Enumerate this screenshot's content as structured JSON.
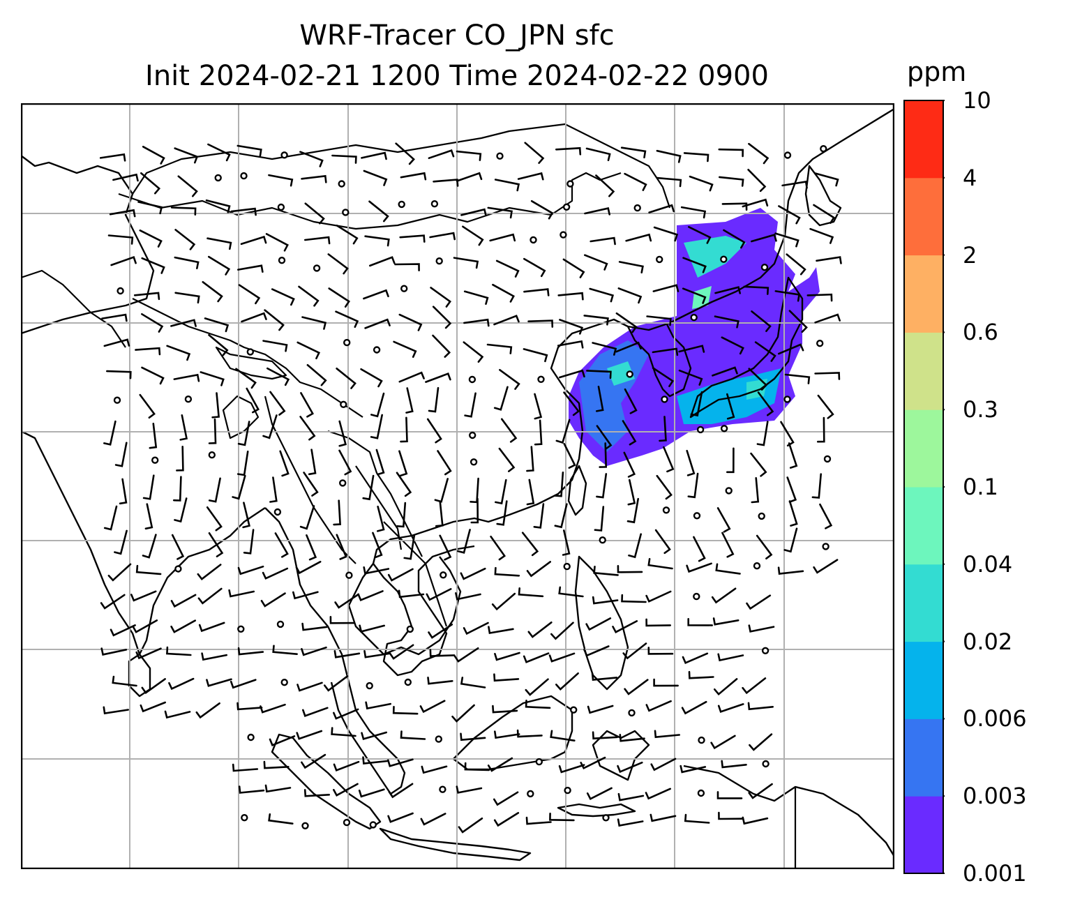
{
  "title": {
    "line1": "WRF-Tracer CO_JPN sfc",
    "line2": "Init 2024-02-21 1200 Time 2024-02-22 0900"
  },
  "colorbar": {
    "unit": "ppm",
    "ticks": [
      "0.001",
      "0.003",
      "0.006",
      "0.02",
      "0.04",
      "0.1",
      "0.3",
      "0.6",
      "2",
      "4",
      "10"
    ],
    "colors": [
      "#6a2bff",
      "#3675f2",
      "#05b3ec",
      "#33dcd2",
      "#6df6bd",
      "#9df79c",
      "#cfe28a",
      "#feb063",
      "#fe6e3b",
      "#fe2b15"
    ]
  },
  "map": {
    "coastline_color": "#000000",
    "gridline_color": "#b0b0b0",
    "plume_region": "Japan / Korea / East China Sea",
    "wind_barbs": true
  }
}
